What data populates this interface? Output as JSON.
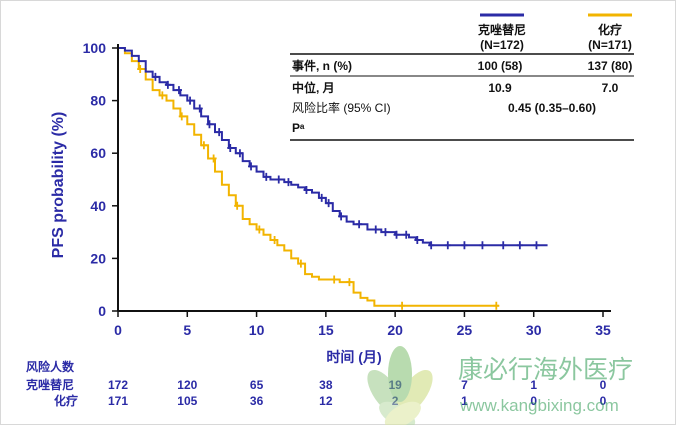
{
  "chart_data": {
    "type": "line",
    "ylabel": "PFS probability (%)",
    "xlabel": "时间 (月)",
    "xlim": [
      0,
      35
    ],
    "ylim": [
      0,
      100
    ],
    "xticks": [
      0,
      5,
      10,
      15,
      20,
      25,
      30,
      35
    ],
    "yticks": [
      0,
      20,
      40,
      60,
      80,
      100
    ],
    "grid": false,
    "series": [
      {
        "name": "克唑替尼",
        "n_label": "(N=172)",
        "color": "#2b2ba6",
        "steps": [
          [
            0,
            100
          ],
          [
            0.5,
            99
          ],
          [
            1,
            97
          ],
          [
            1.5,
            95
          ],
          [
            2,
            91
          ],
          [
            2.5,
            89
          ],
          [
            3,
            87
          ],
          [
            3.5,
            86
          ],
          [
            4,
            84
          ],
          [
            4.5,
            82
          ],
          [
            5,
            80
          ],
          [
            5.5,
            77
          ],
          [
            6,
            74
          ],
          [
            6.5,
            71
          ],
          [
            7,
            68
          ],
          [
            7.5,
            65
          ],
          [
            8,
            62
          ],
          [
            8.5,
            60
          ],
          [
            9,
            57
          ],
          [
            9.5,
            55
          ],
          [
            10,
            53
          ],
          [
            10.5,
            51
          ],
          [
            11,
            50
          ],
          [
            12,
            49
          ],
          [
            12.5,
            48
          ],
          [
            13,
            47
          ],
          [
            13.5,
            46
          ],
          [
            14,
            45
          ],
          [
            14.5,
            43
          ],
          [
            15,
            41
          ],
          [
            15.5,
            38
          ],
          [
            16,
            36
          ],
          [
            16.5,
            34
          ],
          [
            17,
            33
          ],
          [
            18,
            31
          ],
          [
            19,
            30
          ],
          [
            20,
            29
          ],
          [
            21,
            28
          ],
          [
            21.5,
            27
          ],
          [
            22,
            26
          ],
          [
            22.5,
            25
          ],
          [
            31,
            25
          ]
        ],
        "censor": [
          2.7,
          3.6,
          4.4,
          5.2,
          5.9,
          6.6,
          7.3,
          8.1,
          8.8,
          9.6,
          10.7,
          11.6,
          12.3,
          13.6,
          14.7,
          15.2,
          16.1,
          17.4,
          18.6,
          19.3,
          20.1,
          20.8,
          21.6,
          22.6,
          23.8,
          25.0,
          26.3,
          27.8,
          29.0,
          30.2
        ]
      },
      {
        "name": "化疗",
        "n_label": "(N=171)",
        "color": "#f2b400",
        "steps": [
          [
            0,
            100
          ],
          [
            0.5,
            98
          ],
          [
            1,
            95
          ],
          [
            1.5,
            92
          ],
          [
            2,
            88
          ],
          [
            2.5,
            84
          ],
          [
            3,
            82
          ],
          [
            3.5,
            80
          ],
          [
            4,
            77
          ],
          [
            4.5,
            74
          ],
          [
            5,
            71
          ],
          [
            5.5,
            67
          ],
          [
            6,
            63
          ],
          [
            6.5,
            58
          ],
          [
            7,
            53
          ],
          [
            7.5,
            48
          ],
          [
            8,
            44
          ],
          [
            8.5,
            40
          ],
          [
            9,
            35
          ],
          [
            9.5,
            33
          ],
          [
            10,
            31
          ],
          [
            10.5,
            29
          ],
          [
            11,
            27
          ],
          [
            11.5,
            25
          ],
          [
            12,
            23
          ],
          [
            12.5,
            20
          ],
          [
            13,
            18
          ],
          [
            13.5,
            14
          ],
          [
            14,
            13
          ],
          [
            14.5,
            12
          ],
          [
            15,
            12
          ],
          [
            16,
            11
          ],
          [
            17,
            7
          ],
          [
            17.5,
            5
          ],
          [
            18,
            4
          ],
          [
            18.5,
            2
          ],
          [
            27.5,
            2
          ]
        ],
        "censor": [
          1.6,
          3.2,
          4.6,
          6.2,
          6.9,
          8.6,
          10.2,
          11.3,
          13.2,
          15.6,
          16.7,
          20.5,
          27.3
        ]
      }
    ]
  },
  "legend": {
    "entries": [
      {
        "name": "克唑替尼",
        "n": "(N=172)",
        "color": "#2b2ba6"
      },
      {
        "name": "化疗",
        "n": "(N=171)",
        "color": "#f2b400"
      }
    ]
  },
  "stats_table": {
    "rows": [
      {
        "label": "事件, n (%)",
        "crizotinib": "100 (58)",
        "chemo": "137 (80)"
      },
      {
        "label": "中位, 月",
        "crizotinib": "10.9",
        "chemo": "7.0"
      },
      {
        "label": "风险比率 (95% CI)",
        "combined": "0.45 (0.35–0.60)"
      },
      {
        "label": "Pᵃ"
      }
    ]
  },
  "risk_table": {
    "title": "风险人数",
    "rows": [
      {
        "label": "克唑替尼",
        "values": [
          "172",
          "120",
          "65",
          "38",
          "19",
          "7",
          "1",
          "0"
        ]
      },
      {
        "label": "化疗",
        "values": [
          "171",
          "105",
          "36",
          "12",
          "2",
          "1",
          "0",
          "0"
        ]
      }
    ]
  },
  "watermark": {
    "text": "康必行海外医疗",
    "url": "www.kangbixing.com"
  }
}
